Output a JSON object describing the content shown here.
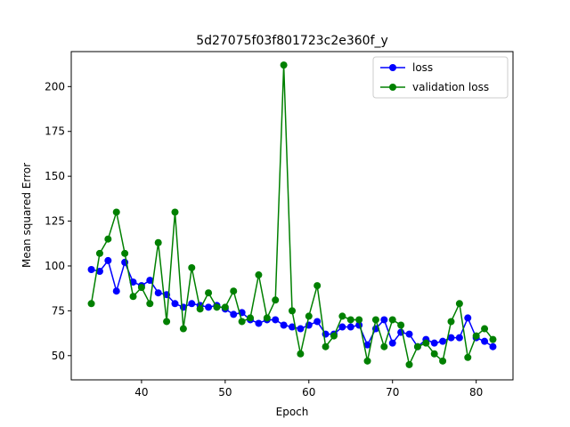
{
  "chart_data": {
    "type": "line",
    "title": "5d27075f03f801723c2e360f_y",
    "xlabel": "Epoch",
    "ylabel": "Mean squared Error",
    "xlim": [
      31.6,
      84.4
    ],
    "ylim": [
      36.5,
      219.5
    ],
    "xticks": [
      40,
      50,
      60,
      70,
      80
    ],
    "yticks": [
      50,
      75,
      100,
      125,
      150,
      175,
      200
    ],
    "grid": false,
    "legend_position": "top-right",
    "x": [
      34,
      35,
      36,
      37,
      38,
      39,
      40,
      41,
      42,
      43,
      44,
      45,
      46,
      47,
      48,
      49,
      50,
      51,
      52,
      53,
      54,
      55,
      56,
      57,
      58,
      59,
      60,
      61,
      62,
      63,
      64,
      65,
      66,
      67,
      68,
      69,
      70,
      71,
      72,
      73,
      74,
      75,
      76,
      77,
      78,
      79,
      80,
      81,
      82
    ],
    "series": [
      {
        "name": "loss",
        "color": "#0000ff",
        "values": [
          98,
          97,
          103,
          86,
          102,
          91,
          89,
          92,
          85,
          84,
          79,
          77,
          79,
          78,
          77,
          78,
          76,
          73,
          74,
          70,
          68,
          70,
          70,
          67,
          66,
          65,
          67,
          69,
          62,
          62,
          66,
          66,
          67,
          56,
          65,
          70,
          57,
          63,
          62,
          55,
          59,
          57,
          58,
          60,
          60,
          71,
          60,
          58,
          55
        ]
      },
      {
        "name": "validation loss",
        "color": "#008000",
        "values": [
          79,
          107,
          115,
          130,
          107,
          83,
          88,
          79,
          113,
          69,
          130,
          65,
          99,
          76,
          85,
          77,
          77,
          86,
          69,
          71,
          95,
          71,
          81,
          212,
          75,
          51,
          72,
          89,
          55,
          61,
          72,
          70,
          70,
          47,
          70,
          55,
          70,
          67,
          45,
          55,
          57,
          51,
          47,
          69,
          79,
          49,
          61,
          65,
          59
        ]
      }
    ]
  }
}
